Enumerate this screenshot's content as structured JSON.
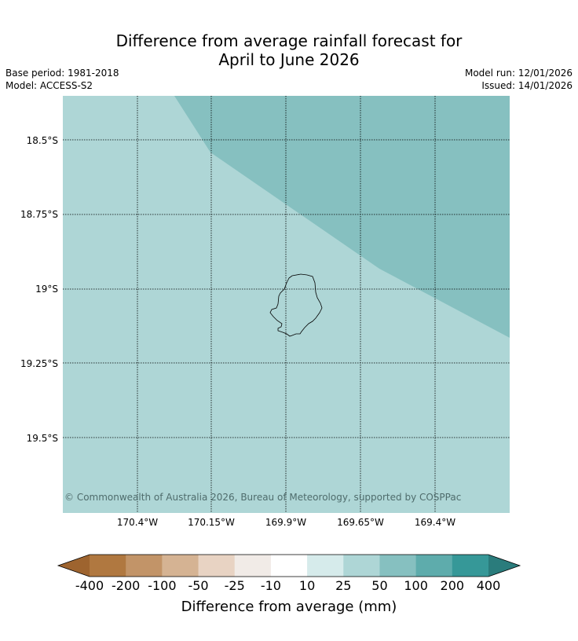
{
  "header": {
    "title_line1": "Difference from average rainfall forecast for",
    "title_line2": "April to June 2026",
    "base_period": "Base period: 1981-2018",
    "model": "Model: ACCESS-S2",
    "model_run": "Model run: 12/01/2026",
    "issued": "Issued: 14/01/2026"
  },
  "map": {
    "latitude_labels": [
      "18.5°S",
      "18.75°S",
      "19°S",
      "19.25°S",
      "19.5°S"
    ],
    "longitude_labels": [
      "170.4°W",
      "170.15°W",
      "169.9°W",
      "169.65°W",
      "169.4°W"
    ],
    "lat_range": [
      -19.75,
      -18.35
    ],
    "lon_range": [
      -170.65,
      -169.15
    ],
    "fill_colors": {
      "category_25_50": "#aed6d6",
      "category_50_100": "#86c0c0"
    },
    "regions": [
      {
        "name": "25 to 50 mm",
        "color": "#aed6d6"
      },
      {
        "name": "50 to 100 mm",
        "color": "#86c0c0"
      }
    ],
    "grid": true,
    "copyright": "© Commonwealth of Australia 2026, Bureau of Meteorology, supported by COSPPac"
  },
  "colorbar": {
    "label": "Difference from average (mm)",
    "tick_labels": [
      "-400",
      "-200",
      "-100",
      "-50",
      "-25",
      "-10",
      "10",
      "25",
      "50",
      "100",
      "200",
      "400"
    ],
    "colors": [
      "#9e642f",
      "#b07840",
      "#c29468",
      "#d5b393",
      "#e8d3c3",
      "#f1ebe7",
      "#ffffff",
      "#d6ebeb",
      "#aed6d6",
      "#86c0c0",
      "#5eacac",
      "#369898",
      "#2a7c7c"
    ],
    "extend": "both"
  }
}
